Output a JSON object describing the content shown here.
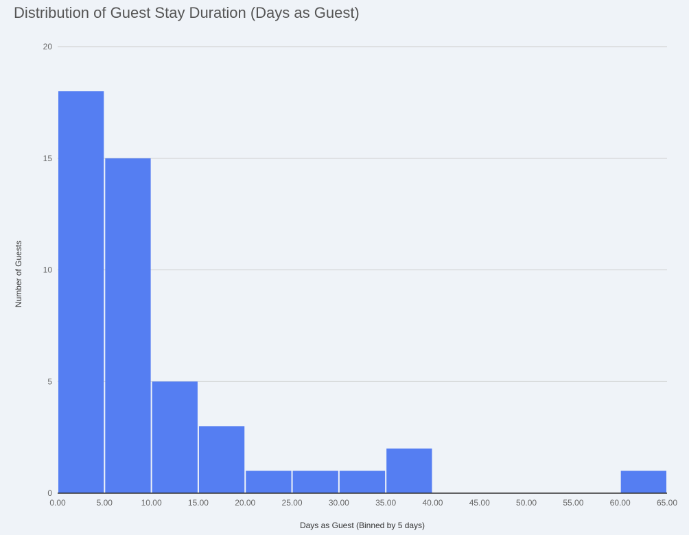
{
  "chart_data": {
    "type": "bar",
    "title": "Distribution of Guest Stay Duration (Days as Guest)",
    "xlabel": "Days as Guest (Binned by 5 days)",
    "ylabel": "Number of Guests",
    "bins": [
      {
        "start": 0,
        "end": 5,
        "count": 18
      },
      {
        "start": 5,
        "end": 10,
        "count": 15
      },
      {
        "start": 10,
        "end": 15,
        "count": 5
      },
      {
        "start": 15,
        "end": 20,
        "count": 3
      },
      {
        "start": 20,
        "end": 25,
        "count": 1
      },
      {
        "start": 25,
        "end": 30,
        "count": 1
      },
      {
        "start": 30,
        "end": 35,
        "count": 1
      },
      {
        "start": 35,
        "end": 40,
        "count": 2
      },
      {
        "start": 40,
        "end": 45,
        "count": 0
      },
      {
        "start": 45,
        "end": 50,
        "count": 0
      },
      {
        "start": 50,
        "end": 55,
        "count": 0
      },
      {
        "start": 55,
        "end": 60,
        "count": 0
      },
      {
        "start": 60,
        "end": 65,
        "count": 1
      }
    ],
    "xlim": [
      0,
      65
    ],
    "ylim": [
      0,
      20
    ],
    "x_ticks": [
      "0.00",
      "5.00",
      "10.00",
      "15.00",
      "20.00",
      "25.00",
      "30.00",
      "35.00",
      "40.00",
      "45.00",
      "50.00",
      "55.00",
      "60.00",
      "65.00"
    ],
    "x_tick_values": [
      0,
      5,
      10,
      15,
      20,
      25,
      30,
      35,
      40,
      45,
      50,
      55,
      60,
      65
    ],
    "y_ticks": [
      "0",
      "5",
      "10",
      "15",
      "20"
    ],
    "y_tick_values": [
      0,
      5,
      10,
      15,
      20
    ],
    "grid": true,
    "legend": "none",
    "colors": {
      "bar": "#557ef2",
      "grid": "#cccccc",
      "axis": "#333333",
      "background": "#eff3f8"
    }
  }
}
